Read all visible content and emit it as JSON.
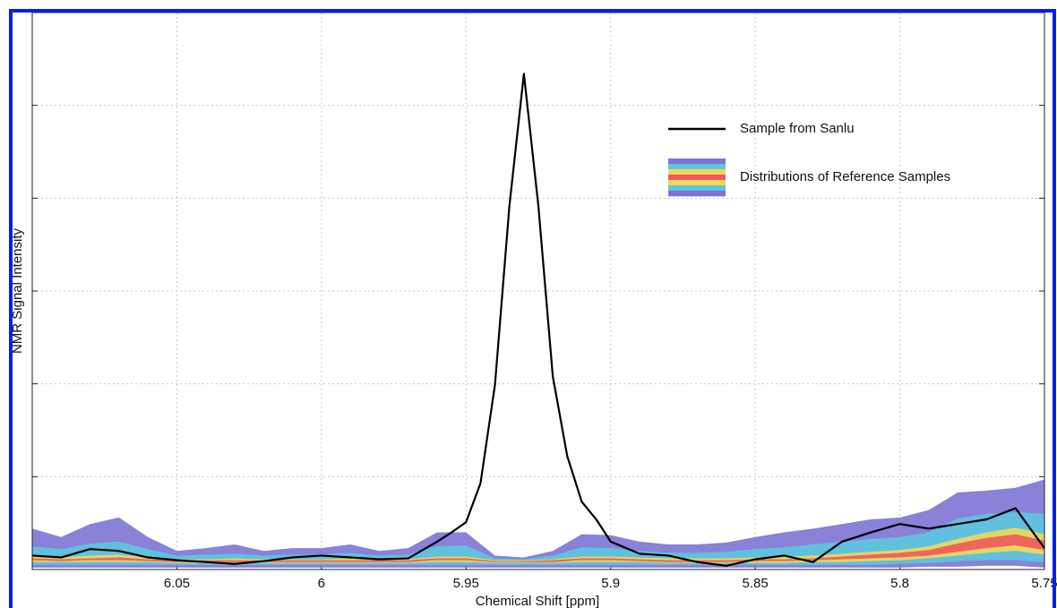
{
  "chart_data": {
    "type": "line",
    "xlabel": "Chemical Shift [ppm]",
    "ylabel": "NMR Signal Intensity",
    "xlim": [
      6.1,
      5.75
    ],
    "ylim": [
      0,
      6
    ],
    "xticks": [
      6.05,
      6,
      5.95,
      5.9,
      5.85,
      5.8,
      5.75
    ],
    "yticks": [
      0,
      1,
      2,
      3,
      4,
      5,
      6
    ],
    "grid": true,
    "legend": "upper right",
    "x": [
      6.1,
      6.09,
      6.08,
      6.07,
      6.06,
      6.05,
      6.04,
      6.03,
      6.02,
      6.01,
      6.0,
      5.99,
      5.98,
      5.97,
      5.96,
      5.955,
      5.95,
      5.945,
      5.94,
      5.935,
      5.93,
      5.925,
      5.92,
      5.915,
      5.91,
      5.905,
      5.9,
      5.89,
      5.88,
      5.87,
      5.86,
      5.85,
      5.84,
      5.83,
      5.82,
      5.81,
      5.8,
      5.79,
      5.78,
      5.77,
      5.76,
      5.75
    ],
    "series": [
      {
        "name": "Sample from Sanlu",
        "color": "#000000",
        "values": [
          0.15,
          0.13,
          0.22,
          0.2,
          0.13,
          0.1,
          0.08,
          0.06,
          0.09,
          0.13,
          0.15,
          0.13,
          0.11,
          0.12,
          0.3,
          0.4,
          0.51,
          0.93,
          1.99,
          3.92,
          5.34,
          3.92,
          2.08,
          1.22,
          0.73,
          0.54,
          0.3,
          0.17,
          0.15,
          0.08,
          0.04,
          0.11,
          0.15,
          0.08,
          0.3,
          0.4,
          0.49,
          0.44,
          0.49,
          0.54,
          0.66,
          0.23
        ]
      }
    ],
    "distribution": {
      "name": "Distributions of Reference Samples",
      "x": [
        6.1,
        6.09,
        6.08,
        6.07,
        6.06,
        6.05,
        6.04,
        6.03,
        6.02,
        6.01,
        6.0,
        5.99,
        5.98,
        5.97,
        5.96,
        5.95,
        5.94,
        5.93,
        5.92,
        5.91,
        5.9,
        5.89,
        5.88,
        5.87,
        5.86,
        5.85,
        5.84,
        5.83,
        5.82,
        5.81,
        5.8,
        5.79,
        5.78,
        5.77,
        5.76,
        5.75
      ],
      "bands": [
        {
          "color": "#7d73d4",
          "upper": [
            0.44,
            0.35,
            0.49,
            0.56,
            0.35,
            0.2,
            0.23,
            0.27,
            0.2,
            0.23,
            0.23,
            0.27,
            0.2,
            0.23,
            0.4,
            0.4,
            0.15,
            0.13,
            0.2,
            0.38,
            0.37,
            0.3,
            0.27,
            0.27,
            0.29,
            0.35,
            0.4,
            0.44,
            0.49,
            0.54,
            0.56,
            0.64,
            0.83,
            0.85,
            0.88,
            0.97
          ],
          "lower": [
            0.02,
            0.02,
            0.02,
            0.02,
            0.02,
            0.02,
            0.02,
            0.02,
            0.02,
            0.02,
            0.02,
            0.02,
            0.02,
            0.02,
            0.02,
            0.02,
            0.02,
            0.02,
            0.02,
            0.02,
            0.02,
            0.02,
            0.02,
            0.02,
            0.02,
            0.02,
            0.02,
            0.02,
            0.02,
            0.02,
            0.02,
            0.03,
            0.03,
            0.04,
            0.04,
            0.02
          ]
        },
        {
          "color": "#5cc6df",
          "upper": [
            0.25,
            0.22,
            0.28,
            0.3,
            0.22,
            0.15,
            0.16,
            0.17,
            0.15,
            0.16,
            0.16,
            0.18,
            0.15,
            0.16,
            0.25,
            0.26,
            0.12,
            0.11,
            0.15,
            0.24,
            0.23,
            0.2,
            0.18,
            0.18,
            0.19,
            0.22,
            0.24,
            0.27,
            0.3,
            0.33,
            0.35,
            0.4,
            0.55,
            0.6,
            0.62,
            0.6
          ],
          "lower": [
            0.05,
            0.05,
            0.05,
            0.05,
            0.05,
            0.05,
            0.05,
            0.05,
            0.05,
            0.05,
            0.05,
            0.05,
            0.05,
            0.05,
            0.05,
            0.05,
            0.05,
            0.05,
            0.05,
            0.05,
            0.05,
            0.05,
            0.05,
            0.05,
            0.05,
            0.05,
            0.05,
            0.05,
            0.05,
            0.05,
            0.06,
            0.07,
            0.09,
            0.1,
            0.1,
            0.08
          ]
        },
        {
          "color": "#f0d85a",
          "upper": [
            0.14,
            0.13,
            0.15,
            0.16,
            0.13,
            0.11,
            0.11,
            0.12,
            0.11,
            0.11,
            0.11,
            0.12,
            0.11,
            0.11,
            0.14,
            0.14,
            0.1,
            0.1,
            0.11,
            0.14,
            0.14,
            0.13,
            0.12,
            0.12,
            0.12,
            0.13,
            0.14,
            0.15,
            0.17,
            0.19,
            0.21,
            0.25,
            0.33,
            0.4,
            0.45,
            0.38
          ],
          "lower": [
            0.08,
            0.08,
            0.08,
            0.08,
            0.08,
            0.07,
            0.07,
            0.07,
            0.07,
            0.07,
            0.07,
            0.07,
            0.07,
            0.07,
            0.08,
            0.08,
            0.07,
            0.07,
            0.07,
            0.08,
            0.08,
            0.08,
            0.07,
            0.07,
            0.07,
            0.07,
            0.07,
            0.08,
            0.08,
            0.09,
            0.1,
            0.12,
            0.15,
            0.18,
            0.2,
            0.16
          ]
        },
        {
          "color": "#ef5a5a",
          "upper": [
            0.12,
            0.11,
            0.12,
            0.13,
            0.11,
            0.1,
            0.1,
            0.1,
            0.1,
            0.1,
            0.1,
            0.1,
            0.1,
            0.1,
            0.12,
            0.12,
            0.09,
            0.09,
            0.1,
            0.12,
            0.12,
            0.11,
            0.1,
            0.1,
            0.1,
            0.11,
            0.11,
            0.12,
            0.14,
            0.16,
            0.18,
            0.21,
            0.28,
            0.34,
            0.38,
            0.31
          ],
          "lower": [
            0.1,
            0.09,
            0.1,
            0.1,
            0.09,
            0.08,
            0.08,
            0.08,
            0.08,
            0.08,
            0.08,
            0.08,
            0.08,
            0.08,
            0.1,
            0.1,
            0.08,
            0.08,
            0.08,
            0.1,
            0.1,
            0.09,
            0.08,
            0.08,
            0.08,
            0.09,
            0.09,
            0.1,
            0.11,
            0.12,
            0.13,
            0.15,
            0.19,
            0.23,
            0.26,
            0.21
          ]
        }
      ]
    }
  }
}
